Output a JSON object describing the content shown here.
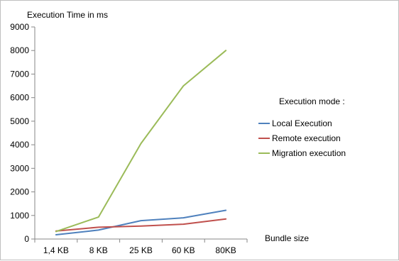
{
  "chart_data": {
    "type": "line",
    "title": "",
    "ylabel": "Execution Time in ms",
    "xlabel": "Bundle size",
    "ylim": [
      0,
      9000
    ],
    "yticks": [
      0,
      1000,
      2000,
      3000,
      4000,
      5000,
      6000,
      7000,
      8000,
      9000
    ],
    "categories": [
      "1,4 KB",
      "8 KB",
      "25 KB",
      "60 KB",
      "80KB"
    ],
    "grid": false,
    "legend_title": "Execution mode :",
    "legend_position": "right",
    "series": [
      {
        "name": "Local Execution",
        "color": "#4f81bd",
        "values": [
          180,
          380,
          780,
          900,
          1220
        ]
      },
      {
        "name": "Remote execution",
        "color": "#c0504d",
        "values": [
          340,
          500,
          550,
          630,
          850
        ]
      },
      {
        "name": "Migration execution",
        "color": "#9bbb59",
        "values": [
          320,
          930,
          4050,
          6500,
          8000
        ]
      }
    ]
  }
}
